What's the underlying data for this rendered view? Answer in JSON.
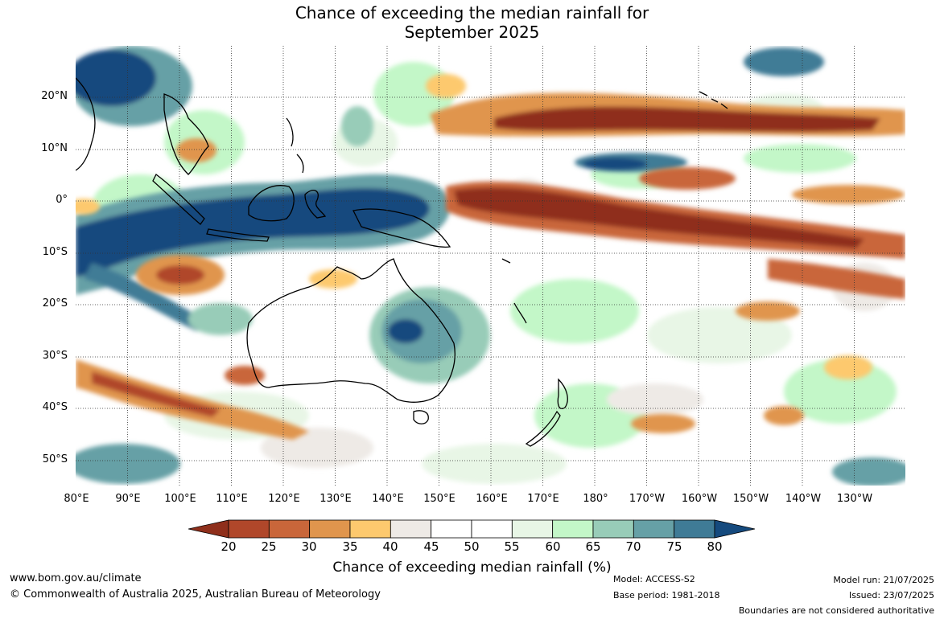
{
  "title": {
    "line1": "Chance of exceeding the median rainfall for",
    "line2": "September 2025"
  },
  "map": {
    "latitude_labels": [
      "20°N",
      "10°N",
      "0°",
      "10°S",
      "20°S",
      "30°S",
      "40°S",
      "50°S"
    ],
    "longitude_labels": [
      "80°E",
      "90°E",
      "100°E",
      "110°E",
      "120°E",
      "130°E",
      "140°E",
      "150°E",
      "160°E",
      "170°E",
      "180°",
      "170°W",
      "160°W",
      "150°W",
      "140°W",
      "130°W"
    ]
  },
  "colorbar": {
    "ticks": [
      "20",
      "25",
      "30",
      "35",
      "40",
      "45",
      "50",
      "55",
      "60",
      "65",
      "70",
      "75",
      "80"
    ],
    "colors": [
      "#8f2f1b",
      "#b0472a",
      "#c9663a",
      "#e0954d",
      "#fdc96e",
      "#eeeae6",
      "#ffffff",
      "#ffffff",
      "#e8f6e6",
      "#c3f7c8",
      "#98ccb8",
      "#66a0a6",
      "#3f7b96",
      "#154a7e"
    ],
    "label": "Chance of exceeding median rainfall (%)"
  },
  "footer": {
    "website": "www.bom.gov.au/climate",
    "copyright": "© Commonwealth of Australia 2025, Australian Bureau of Meteorology",
    "model": "Model: ACCESS-S2",
    "base_period": "Base period: 1981-2018",
    "model_run": "Model run: 21/07/2025",
    "issued": "Issued: 23/07/2025",
    "disclaimer": "Boundaries are not considered authoritative"
  }
}
